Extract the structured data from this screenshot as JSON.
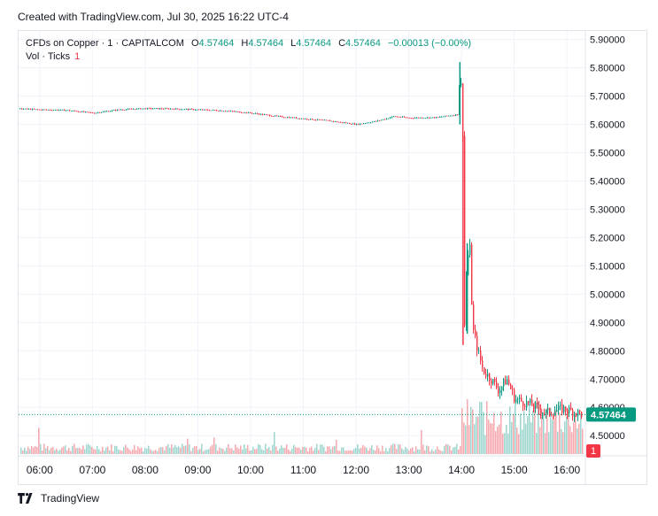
{
  "caption": "Created with TradingView.com, Jul 30, 2025 16:22 UTC-4",
  "legend": {
    "symbol": "CFDs on Copper · 1 · CAPITALCOM",
    "o_label": "O",
    "o_value": "4.57464",
    "h_label": "H",
    "h_value": "4.57464",
    "l_label": "L",
    "l_value": "4.57464",
    "c_label": "C",
    "c_value": "4.57464",
    "change": "−0.00013 (−0.00%)"
  },
  "volume_legend": {
    "label": "Vol · Ticks",
    "count": "1"
  },
  "footer": {
    "brand": "TradingView"
  },
  "colors": {
    "up": "#089981",
    "down": "#f23645",
    "up_vol": "#9dd6cf",
    "down_vol": "#f5a9ae",
    "grid": "#f0f3fa",
    "last_price_bg": "#089981",
    "volume_badge_bg": "#f23645"
  },
  "chart_data": {
    "type": "candlestick",
    "title": "CFDs on Copper · 1 · CAPITALCOM",
    "y_ticks": [
      "5.90000",
      "5.80000",
      "5.70000",
      "5.60000",
      "5.50000",
      "5.40000",
      "5.30000",
      "5.20000",
      "5.10000",
      "5.00000",
      "4.90000",
      "4.80000",
      "4.70000",
      "4.60000",
      "4.50000"
    ],
    "ylim": [
      4.46,
      5.93
    ],
    "x_ticks": [
      "06:00",
      "07:00",
      "08:00",
      "09:00",
      "10:00",
      "11:00",
      "12:00",
      "13:00",
      "14:00",
      "15:00",
      "16:00"
    ],
    "x_range_hours": [
      5.6,
      16.35
    ],
    "last_price": "4.57464",
    "last_volume": "1",
    "price_path": [
      [
        5.6,
        5.655
      ],
      [
        6.0,
        5.652
      ],
      [
        6.5,
        5.65
      ],
      [
        7.0,
        5.64
      ],
      [
        7.5,
        5.652
      ],
      [
        8.0,
        5.656
      ],
      [
        8.5,
        5.655
      ],
      [
        9.0,
        5.652
      ],
      [
        9.5,
        5.648
      ],
      [
        10.0,
        5.64
      ],
      [
        10.5,
        5.628
      ],
      [
        11.0,
        5.62
      ],
      [
        11.5,
        5.612
      ],
      [
        12.0,
        5.6
      ],
      [
        12.4,
        5.612
      ],
      [
        12.7,
        5.628
      ],
      [
        13.0,
        5.623
      ],
      [
        13.5,
        5.624
      ],
      [
        13.92,
        5.635
      ],
      [
        13.97,
        5.82
      ],
      [
        14.0,
        5.6
      ],
      [
        14.03,
        5.55
      ],
      [
        14.05,
        4.85
      ],
      [
        14.09,
        5.12
      ],
      [
        14.15,
        5.16
      ],
      [
        14.2,
        4.88
      ],
      [
        14.3,
        4.8
      ],
      [
        14.4,
        4.73
      ],
      [
        14.55,
        4.7
      ],
      [
        14.7,
        4.66
      ],
      [
        14.85,
        4.7
      ],
      [
        15.0,
        4.63
      ],
      [
        15.3,
        4.61
      ],
      [
        15.6,
        4.58
      ],
      [
        15.9,
        4.595
      ],
      [
        16.1,
        4.585
      ],
      [
        16.3,
        4.575
      ]
    ],
    "volume_spikes": [
      [
        5.96,
        48
      ],
      [
        8.8,
        28
      ],
      [
        9.3,
        30
      ],
      [
        10.45,
        40
      ],
      [
        11.6,
        26
      ],
      [
        13.22,
        44
      ],
      [
        14.0,
        80
      ],
      [
        14.1,
        100
      ],
      [
        14.35,
        95
      ],
      [
        14.6,
        75
      ],
      [
        14.9,
        60
      ],
      [
        15.3,
        55
      ]
    ]
  }
}
